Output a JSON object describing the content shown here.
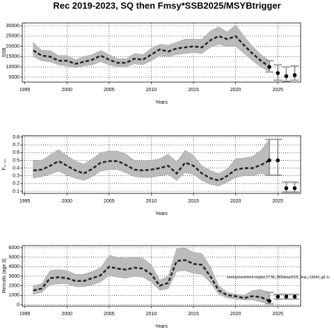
{
  "title": "Rec 2019-2023, SQ then Fmsy*SSB2025/MSYBtrigger",
  "chart_data": [
    {
      "type": "line",
      "ylabel": "SSB",
      "xlabel": "Years",
      "xlim": [
        1994.7,
        2027.7
      ],
      "xticks": [
        1995,
        2000,
        2005,
        2010,
        2015,
        2020,
        2025
      ],
      "ylim": [
        2600,
        31400
      ],
      "yticks": [
        5000,
        10000,
        15000,
        20000,
        25000,
        30000
      ],
      "grid": true,
      "x": [
        1996,
        1997,
        1998,
        1999,
        2000,
        2001,
        2002,
        2003,
        2004,
        2005,
        2006,
        2007,
        2008,
        2009,
        2010,
        2011,
        2012,
        2013,
        2014,
        2015,
        2016,
        2017,
        2018,
        2019,
        2020,
        2021,
        2022,
        2023,
        2024
      ],
      "values": [
        18000,
        15500,
        15000,
        13000,
        13000,
        11500,
        12500,
        13500,
        15500,
        13500,
        12000,
        12000,
        14000,
        13500,
        16000,
        18500,
        17500,
        19000,
        19500,
        20000,
        19500,
        23000,
        25000,
        23500,
        25000,
        20500,
        16500,
        13000,
        10000
      ],
      "upper": [
        22000,
        18000,
        18000,
        15500,
        15500,
        13500,
        15000,
        16000,
        18000,
        16000,
        14000,
        14000,
        16500,
        16000,
        19000,
        21000,
        20500,
        22000,
        23500,
        23500,
        23500,
        27500,
        29500,
        27000,
        30500,
        25000,
        20000,
        16000,
        13000
      ],
      "lower": [
        15000,
        13000,
        12500,
        11000,
        10500,
        9500,
        10500,
        11000,
        12500,
        11000,
        10000,
        10000,
        11500,
        11000,
        13000,
        15500,
        15000,
        16000,
        16500,
        17000,
        16500,
        19500,
        21000,
        20000,
        20000,
        16500,
        13000,
        10000,
        7500
      ],
      "proj_x": [
        2024,
        2025,
        2026,
        2027
      ],
      "proj_values": [
        10000,
        7000,
        5500,
        6000
      ],
      "proj_upper": [
        13000,
        11000,
        10000,
        10500
      ],
      "proj_lower": [
        7500,
        3500,
        3000,
        3500
      ]
    },
    {
      "type": "line",
      "ylabel": "F₂₋₁₀",
      "xlabel": "Years",
      "xlim": [
        1994.7,
        2027.7
      ],
      "xticks": [
        1995,
        2000,
        2005,
        2010,
        2015,
        2020,
        2025
      ],
      "ylim": [
        0.073,
        0.818
      ],
      "yticks": [
        0.1,
        0.2,
        0.3,
        0.4,
        0.5,
        0.6,
        0.7,
        0.8
      ],
      "grid": true,
      "x": [
        1996,
        1997,
        1998,
        1999,
        2000,
        2001,
        2002,
        2003,
        2004,
        2005,
        2006,
        2007,
        2008,
        2009,
        2010,
        2011,
        2012,
        2013,
        2014,
        2015,
        2016,
        2017,
        2018,
        2019,
        2020,
        2021,
        2022,
        2023,
        2024
      ],
      "values": [
        0.37,
        0.38,
        0.43,
        0.49,
        0.43,
        0.37,
        0.33,
        0.39,
        0.47,
        0.49,
        0.49,
        0.44,
        0.38,
        0.37,
        0.38,
        0.4,
        0.43,
        0.33,
        0.47,
        0.43,
        0.33,
        0.27,
        0.24,
        0.3,
        0.38,
        0.4,
        0.4,
        0.44,
        0.5
      ],
      "upper": [
        0.5,
        0.5,
        0.57,
        0.64,
        0.56,
        0.49,
        0.45,
        0.52,
        0.6,
        0.62,
        0.62,
        0.58,
        0.5,
        0.49,
        0.5,
        0.52,
        0.58,
        0.48,
        0.63,
        0.56,
        0.43,
        0.37,
        0.33,
        0.39,
        0.52,
        0.53,
        0.55,
        0.63,
        0.77
      ],
      "lower": [
        0.27,
        0.29,
        0.32,
        0.36,
        0.31,
        0.27,
        0.24,
        0.29,
        0.36,
        0.38,
        0.38,
        0.34,
        0.29,
        0.28,
        0.28,
        0.3,
        0.32,
        0.24,
        0.34,
        0.32,
        0.24,
        0.19,
        0.17,
        0.22,
        0.28,
        0.3,
        0.3,
        0.33,
        0.31
      ],
      "proj_x": [
        2024,
        2025,
        2026,
        2027
      ],
      "proj_values": [
        0.5,
        0.5,
        0.14,
        0.14
      ],
      "proj_upper": [
        0.77,
        0.77,
        0.22,
        0.22
      ],
      "proj_lower": [
        0.31,
        0.31,
        0.09,
        0.09
      ]
    },
    {
      "type": "line",
      "ylabel": "Recruits (age 3)",
      "xlabel": "Years",
      "annotation": "stockassessment.org/ple.27.5b_WGdeep2025_final_r18949_g8.1c",
      "xlim": [
        1994.7,
        2027.7
      ],
      "xticks": [
        1995,
        2000,
        2005,
        2010,
        2015,
        2020,
        2025
      ],
      "ylim": [
        -150,
        6220
      ],
      "yticks": [
        0,
        1000,
        2000,
        3000,
        4000,
        5000,
        6000
      ],
      "grid": true,
      "x": [
        1996,
        1997,
        1998,
        1999,
        2000,
        2001,
        2002,
        2003,
        2004,
        2005,
        2006,
        2007,
        2008,
        2009,
        2010,
        2011,
        2012,
        2013,
        2014,
        2015,
        2016,
        2017,
        2018,
        2019,
        2020,
        2021,
        2022,
        2023,
        2024
      ],
      "values": [
        1500,
        1700,
        2800,
        2900,
        2800,
        2500,
        2500,
        2800,
        3100,
        4000,
        3800,
        3700,
        3900,
        3800,
        3200,
        2000,
        2300,
        4600,
        4700,
        4300,
        4200,
        3000,
        1500,
        1000,
        900,
        700,
        900,
        800,
        400
      ],
      "upper": [
        2000,
        2200,
        3600,
        3700,
        3600,
        3200,
        3200,
        3500,
        3900,
        5200,
        5000,
        4900,
        5000,
        4900,
        4200,
        2600,
        3000,
        5900,
        6000,
        5500,
        5400,
        4000,
        2000,
        1300,
        1100,
        1000,
        1500,
        1600,
        1300
      ],
      "lower": [
        1100,
        1300,
        2100,
        2200,
        2200,
        1900,
        1900,
        2100,
        2400,
        3100,
        2900,
        2800,
        3000,
        2900,
        2400,
        1500,
        1700,
        3500,
        3600,
        3300,
        3200,
        2300,
        1100,
        700,
        600,
        500,
        500,
        300,
        100
      ],
      "proj_x": [
        2024,
        2025,
        2026,
        2027
      ],
      "proj_values": [
        400,
        850,
        850,
        850
      ],
      "proj_upper": [
        1300,
        1100,
        1100,
        1100
      ],
      "proj_lower": [
        100,
        600,
        600,
        600
      ]
    }
  ]
}
